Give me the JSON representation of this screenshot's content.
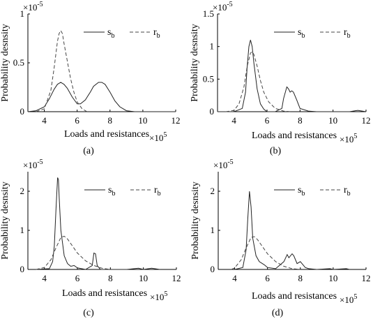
{
  "colors": {
    "axis": "#000000",
    "series_solid": "#222222",
    "series_dashed": "#444444",
    "background": "#ffffff"
  },
  "chart_data": [
    {
      "panel": "(a)",
      "type": "line",
      "xlabel": "Loads and resistances",
      "ylabel": "Probability desnsity",
      "x_exponent": "×10^5",
      "y_exponent": "×10^-5",
      "xlim": [
        3,
        12
      ],
      "ylim": [
        0,
        1
      ],
      "xticks": [
        "4",
        "6",
        "8",
        "10",
        "12"
      ],
      "yticks": [
        "0",
        "0.5",
        "1"
      ],
      "legend": {
        "placement": "top-right",
        "entries": [
          {
            "label": "s_b",
            "style": "solid"
          },
          {
            "label": "r_b",
            "style": "dashed"
          }
        ]
      },
      "series": [
        {
          "name": "s_b",
          "style": "solid",
          "x": [
            3.0,
            3.5,
            4.0,
            4.3,
            4.6,
            4.8,
            5.0,
            5.2,
            5.4,
            5.7,
            6.0,
            6.2,
            6.5,
            6.8,
            7.0,
            7.3,
            7.5,
            7.7,
            8.0,
            8.3,
            8.6,
            9.0,
            9.5,
            10.0,
            11.0,
            12.0
          ],
          "y": [
            0.0,
            0.01,
            0.05,
            0.13,
            0.23,
            0.28,
            0.3,
            0.28,
            0.24,
            0.15,
            0.08,
            0.08,
            0.12,
            0.2,
            0.26,
            0.3,
            0.3,
            0.28,
            0.2,
            0.11,
            0.05,
            0.01,
            0.0,
            0.0,
            0.0,
            0.0
          ]
        },
        {
          "name": "r_b",
          "style": "dashed",
          "x": [
            3.5,
            4.0,
            4.4,
            4.6,
            4.8,
            4.9,
            5.0,
            5.1,
            5.2,
            5.4,
            5.6,
            5.8,
            6.0,
            6.3,
            6.6
          ],
          "y": [
            0.0,
            0.03,
            0.22,
            0.45,
            0.72,
            0.8,
            0.83,
            0.8,
            0.7,
            0.52,
            0.34,
            0.2,
            0.1,
            0.03,
            0.0
          ]
        }
      ]
    },
    {
      "panel": "(b)",
      "type": "line",
      "xlabel": "Loads and resistances",
      "ylabel": "Probability desnsity",
      "x_exponent": "×10^5",
      "y_exponent": "×10^-5",
      "xlim": [
        3,
        12
      ],
      "ylim": [
        0,
        1.5
      ],
      "xticks": [
        "4",
        "6",
        "8",
        "10",
        "12"
      ],
      "yticks": [
        "0",
        "0.5",
        "1",
        "1.5"
      ],
      "legend": {
        "placement": "top-right",
        "entries": [
          {
            "label": "s_b",
            "style": "solid"
          },
          {
            "label": "r_b",
            "style": "dashed"
          }
        ]
      },
      "series": [
        {
          "name": "s_b",
          "style": "solid",
          "x": [
            3.0,
            4.0,
            4.5,
            4.7,
            4.8,
            4.9,
            5.0,
            5.1,
            5.2,
            5.4,
            5.6,
            5.8,
            6.0,
            6.5,
            6.9,
            7.0,
            7.2,
            7.3,
            7.4,
            7.5,
            7.6,
            7.8,
            8.0,
            8.5,
            9.0,
            11.0,
            11.5,
            12.0
          ],
          "y": [
            0.0,
            0.0,
            0.05,
            0.3,
            0.7,
            1.0,
            1.1,
            1.0,
            0.75,
            0.35,
            0.12,
            0.04,
            0.0,
            0.0,
            0.05,
            0.2,
            0.38,
            0.35,
            0.3,
            0.32,
            0.3,
            0.18,
            0.05,
            0.01,
            0.0,
            0.0,
            0.02,
            0.0
          ]
        },
        {
          "name": "r_b",
          "style": "dashed",
          "x": [
            3.5,
            4.0,
            4.3,
            4.6,
            4.8,
            5.0,
            5.1,
            5.2,
            5.4,
            5.6,
            5.8,
            6.1,
            6.5,
            7.0,
            7.5
          ],
          "y": [
            0.0,
            0.02,
            0.12,
            0.38,
            0.7,
            0.9,
            0.92,
            0.88,
            0.7,
            0.48,
            0.3,
            0.15,
            0.05,
            0.01,
            0.0
          ]
        }
      ]
    },
    {
      "panel": "(c)",
      "type": "line",
      "xlabel": "Loads and resistances",
      "ylabel": "Probability desnsity",
      "x_exponent": "×10^5",
      "y_exponent": "×10^-5",
      "xlim": [
        3,
        12
      ],
      "ylim": [
        0,
        2.5
      ],
      "xticks": [
        "4",
        "6",
        "8",
        "10",
        "12"
      ],
      "yticks": [
        "0",
        "1",
        "2"
      ],
      "legend": {
        "placement": "top-right",
        "entries": [
          {
            "label": "s_b",
            "style": "solid"
          },
          {
            "label": "r_b",
            "style": "dashed"
          }
        ]
      },
      "series": [
        {
          "name": "s_b",
          "style": "solid",
          "x": [
            3.5,
            4.3,
            4.5,
            4.6,
            4.7,
            4.8,
            4.85,
            4.9,
            5.0,
            5.2,
            5.4,
            5.6,
            5.8,
            6.0,
            6.5,
            6.9,
            7.0,
            7.1,
            7.2,
            7.4,
            8.0,
            9.0,
            9.7,
            10.0,
            10.5,
            11.0
          ],
          "y": [
            0.0,
            0.02,
            0.2,
            0.6,
            1.5,
            2.35,
            2.3,
            1.8,
            1.0,
            0.35,
            0.15,
            0.08,
            0.1,
            0.04,
            0.0,
            0.1,
            0.42,
            0.4,
            0.1,
            0.0,
            0.0,
            0.0,
            0.03,
            0.0,
            0.03,
            0.0
          ]
        },
        {
          "name": "r_b",
          "style": "dashed",
          "x": [
            3.5,
            4.0,
            4.4,
            4.7,
            5.0,
            5.2,
            5.4,
            5.7,
            6.0,
            6.5,
            7.0,
            7.5,
            8.0
          ],
          "y": [
            0.0,
            0.05,
            0.25,
            0.55,
            0.82,
            0.85,
            0.78,
            0.6,
            0.42,
            0.22,
            0.1,
            0.03,
            0.0
          ]
        }
      ]
    },
    {
      "panel": "(d)",
      "type": "line",
      "xlabel": "Loads and resistances",
      "ylabel": "Probability desnsity",
      "x_exponent": "×10^5",
      "y_exponent": "×10^-5",
      "xlim": [
        3,
        12
      ],
      "ylim": [
        0,
        2.5
      ],
      "xticks": [
        "4",
        "6",
        "8",
        "10",
        "12"
      ],
      "yticks": [
        "0",
        "1",
        "2"
      ],
      "legend": {
        "placement": "top-right",
        "entries": [
          {
            "label": "s_b",
            "style": "solid"
          },
          {
            "label": "r_b",
            "style": "dashed"
          }
        ]
      },
      "series": [
        {
          "name": "s_b",
          "style": "solid",
          "x": [
            4.0,
            4.5,
            4.7,
            4.8,
            4.9,
            5.0,
            5.1,
            5.3,
            5.5,
            5.8,
            6.0,
            6.5,
            7.0,
            7.2,
            7.3,
            7.5,
            7.6,
            7.8,
            8.0,
            8.3,
            8.5,
            9.0,
            9.8,
            10.0,
            10.8,
            11.0
          ],
          "y": [
            0.0,
            0.05,
            0.5,
            1.3,
            2.0,
            1.6,
            0.8,
            0.35,
            0.2,
            0.12,
            0.05,
            0.02,
            0.2,
            0.38,
            0.3,
            0.4,
            0.35,
            0.15,
            0.2,
            0.05,
            0.02,
            0.0,
            0.02,
            0.0,
            0.02,
            0.0
          ]
        },
        {
          "name": "r_b",
          "style": "dashed",
          "x": [
            3.8,
            4.0,
            4.4,
            4.7,
            5.0,
            5.2,
            5.4,
            5.7,
            6.0,
            6.5,
            7.0,
            7.5,
            8.0
          ],
          "y": [
            0.0,
            0.04,
            0.25,
            0.55,
            0.82,
            0.84,
            0.76,
            0.58,
            0.4,
            0.2,
            0.08,
            0.02,
            0.0
          ]
        }
      ]
    }
  ]
}
